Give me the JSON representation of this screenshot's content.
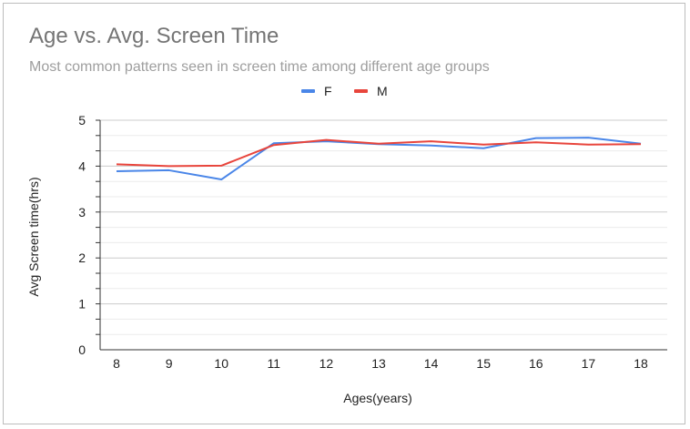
{
  "chart_data": {
    "type": "line",
    "title": "Age vs. Avg. Screen Time",
    "subtitle": "Most common patterns seen in screen time among different age groups",
    "xlabel": "Ages(years)",
    "ylabel": "Avg Screen time(hrs)",
    "categories": [
      "8",
      "9",
      "10",
      "11",
      "12",
      "13",
      "14",
      "15",
      "16",
      "17",
      "18"
    ],
    "yticks": [
      "0",
      "1",
      "2",
      "3",
      "4",
      "5"
    ],
    "ylim": [
      0,
      5
    ],
    "grid": true,
    "legend_position": "top",
    "series": [
      {
        "name": "F",
        "color": "#4a86e8",
        "values": [
          3.89,
          3.91,
          3.71,
          4.5,
          4.54,
          4.48,
          4.45,
          4.39,
          4.61,
          4.62,
          4.49
        ]
      },
      {
        "name": "M",
        "color": "#e8453c",
        "values": [
          4.04,
          4.0,
          4.01,
          4.46,
          4.57,
          4.49,
          4.54,
          4.47,
          4.52,
          4.47,
          4.48
        ]
      }
    ]
  }
}
